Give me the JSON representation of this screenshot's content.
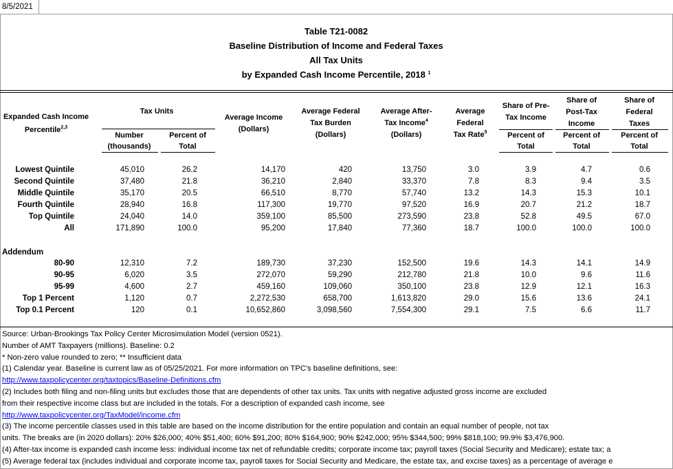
{
  "date": "8/5/2021",
  "title": {
    "table_id": "Table T21-0082",
    "line1": "Baseline Distribution of Income and Federal Taxes",
    "line2": "All Tax Units",
    "line3": "by Expanded Cash Income Percentile, 2018",
    "note": "1"
  },
  "header": {
    "income_percentile": {
      "lines": [
        "Expanded Cash Income",
        "Percentile"
      ],
      "note": "2,3"
    },
    "tax_units": {
      "group": "Tax Units",
      "number": [
        "Number",
        "(thousands)"
      ],
      "percent": [
        "Percent of",
        "Total"
      ]
    },
    "average_income": [
      "Average Income",
      "(Dollars)"
    ],
    "average_federal_tax": [
      "Average Federal",
      "Tax Burden",
      "(Dollars)"
    ],
    "average_after_tax_income": {
      "lines": [
        "Average After-",
        "Tax Income",
        "(Dollars)"
      ],
      "note": "4"
    },
    "average_federal_tax_rate": {
      "lines": [
        "Average",
        "Federal",
        "Tax Rate"
      ],
      "note": "5"
    },
    "share_pre_tax_income": {
      "group": [
        "Share of Pre-",
        "Tax Income"
      ],
      "sub": [
        "Percent of",
        "Total"
      ]
    },
    "share_post_tax_income": {
      "group": [
        "Share of",
        "Post-Tax",
        "Income"
      ],
      "sub": [
        "Percent of",
        "Total"
      ]
    },
    "share_federal_taxes": {
      "group": [
        "Share of",
        "Federal",
        "Taxes"
      ],
      "sub": [
        "Percent of",
        "Total"
      ]
    }
  },
  "table": {
    "rows": [
      [
        "Lowest Quintile",
        "45,010",
        "26.2",
        "14,170",
        "420",
        "13,750",
        "3.0",
        "3.9",
        "4.7",
        "0.6"
      ],
      [
        "Second Quintile",
        "37,480",
        "21.8",
        "36,210",
        "2,840",
        "33,370",
        "7.8",
        "8.3",
        "9.4",
        "3.5"
      ],
      [
        "Middle Quintile",
        "35,170",
        "20.5",
        "66,510",
        "8,770",
        "57,740",
        "13.2",
        "14.3",
        "15.3",
        "10.1"
      ],
      [
        "Fourth Quintile",
        "28,940",
        "16.8",
        "117,300",
        "19,770",
        "97,520",
        "16.9",
        "20.7",
        "21.2",
        "18.7"
      ],
      [
        "Top Quintile",
        "24,040",
        "14.0",
        "359,100",
        "85,500",
        "273,590",
        "23.8",
        "52.8",
        "49.5",
        "67.0"
      ],
      [
        "All",
        "171,890",
        "100.0",
        "95,200",
        "17,840",
        "77,360",
        "18.7",
        "100.0",
        "100.0",
        "100.0"
      ]
    ],
    "addendum": {
      "label": "Addendum",
      "rows": [
        [
          "80-90",
          "12,310",
          "7.2",
          "189,730",
          "37,230",
          "152,500",
          "19.6",
          "14.3",
          "14.1",
          "14.9"
        ],
        [
          "90-95",
          "6,020",
          "3.5",
          "272,070",
          "59,290",
          "212,780",
          "21.8",
          "10.0",
          "9.6",
          "11.6"
        ],
        [
          "95-99",
          "4,600",
          "2.7",
          "459,160",
          "109,060",
          "350,100",
          "23.8",
          "12.9",
          "12.1",
          "16.3"
        ],
        [
          "Top 1 Percent",
          "1,120",
          "0.7",
          "2,272,530",
          "658,700",
          "1,613,820",
          "29.0",
          "15.6",
          "13.6",
          "24.1"
        ],
        [
          "Top 0.1 Percent",
          "120",
          "0.1",
          "10,652,860",
          "3,098,560",
          "7,554,300",
          "29.1",
          "7.5",
          "6.6",
          "11.7"
        ]
      ]
    }
  },
  "footnotes": [
    {
      "text": "Source: Urban-Brookings Tax Policy Center Microsimulation Model (version 0521)."
    },
    {
      "text": "Number of AMT Taxpayers (millions).  Baseline: 0.2"
    },
    {
      "text": "* Non-zero value rounded to zero; ** Insufficient data"
    },
    {
      "text": "(1) Calendar year. Baseline is current law as of 05/25/2021. For more information on TPC's baseline definitions, see:"
    },
    {
      "link": "http://www.taxpolicycenter.org/taxtopics/Baseline-Definitions.cfm"
    },
    {
      "text": "(2) Includes both filing and non-filing units but excludes those that are dependents of other tax units. Tax units with negative adjusted gross income are excluded"
    },
    {
      "text": "from their respective income class but are included in the totals. For a description of expanded cash income, see"
    },
    {
      "link": "http://www.taxpolicycenter.org/TaxModel/income.cfm"
    },
    {
      "text": "(3) The income percentile classes used in this table are based on the income distribution for the entire population and contain an equal number of people, not tax"
    },
    {
      "text": "units. The breaks are (in 2020 dollars): 20% $26,000; 40% $51,400; 60% $91,200; 80% $164,900; 90% $242,000; 95% $344,500; 99% $818,100; 99.9% $3,476,900."
    },
    {
      "text": "(4) After-tax income is expanded cash income less: individual income tax net of refundable credits; corporate income tax; payroll taxes (Social Security and Medicare); estate tax; a"
    },
    {
      "text": "(5) Average federal tax (includes individual and corporate income tax, payroll taxes for Social Security and Medicare, the estate tax, and excise taxes) as a percentage of average e"
    }
  ]
}
